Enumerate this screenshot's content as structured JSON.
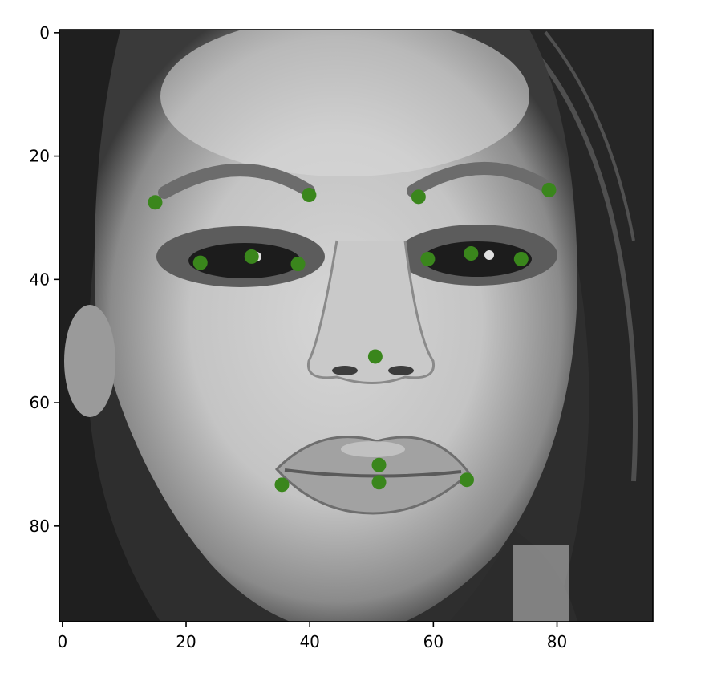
{
  "chart_data": {
    "type": "scatter",
    "title": "",
    "xlabel": "",
    "ylabel": "",
    "xlim": [
      -0.5,
      95.5
    ],
    "ylim": [
      95.5,
      -0.5
    ],
    "y_inverted": true,
    "grid": false,
    "legend": false,
    "x_ticks": [
      0,
      20,
      40,
      60,
      80
    ],
    "y_ticks": [
      0,
      20,
      40,
      60,
      80
    ],
    "background_image": "grayscale-face-photo",
    "series": [
      {
        "color": "#3a861c",
        "points": [
          {
            "x": 15.0,
            "y": 27.5
          },
          {
            "x": 39.9,
            "y": 26.3
          },
          {
            "x": 57.6,
            "y": 26.6
          },
          {
            "x": 78.7,
            "y": 25.5
          },
          {
            "x": 22.3,
            "y": 37.3
          },
          {
            "x": 30.6,
            "y": 36.3
          },
          {
            "x": 38.1,
            "y": 37.5
          },
          {
            "x": 59.1,
            "y": 36.7
          },
          {
            "x": 66.1,
            "y": 35.8
          },
          {
            "x": 74.2,
            "y": 36.7
          },
          {
            "x": 50.6,
            "y": 52.5
          },
          {
            "x": 51.2,
            "y": 70.1
          },
          {
            "x": 51.2,
            "y": 72.9
          },
          {
            "x": 35.5,
            "y": 73.3
          },
          {
            "x": 65.4,
            "y": 72.5
          }
        ]
      }
    ]
  }
}
